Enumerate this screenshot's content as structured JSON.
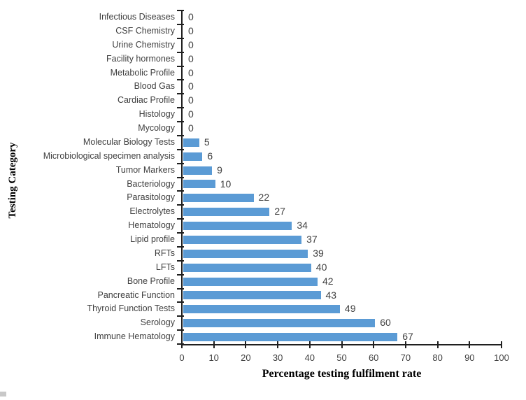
{
  "chart_data": {
    "type": "bar",
    "orientation": "horizontal",
    "xlabel": "Percentage testing fulfilment rate",
    "ylabel": "Testing Category",
    "xlim": [
      0,
      100
    ],
    "xticks": [
      0,
      10,
      20,
      30,
      40,
      50,
      60,
      70,
      80,
      90,
      100
    ],
    "grid": false,
    "legend": false,
    "categories": [
      "Infectious Diseases",
      "CSF Chemistry",
      "Urine Chemistry",
      "Facility hormones",
      "Metabolic Profile",
      "Blood Gas",
      "Cardiac Profile",
      "Histology",
      "Mycology",
      "Molecular Biology Tests",
      "Microbiological specimen analysis",
      "Tumor Markers",
      "Bacteriology",
      "Parasitology",
      "Electrolytes",
      "Hematology",
      "Lipid profile",
      "RFTs",
      "LFTs",
      "Bone Profile",
      "Pancreatic Function",
      "Thyroid Function Tests",
      "Serology",
      "Immune Hematology"
    ],
    "values": [
      0,
      0,
      0,
      0,
      0,
      0,
      0,
      0,
      0,
      5,
      6,
      9,
      10,
      22,
      27,
      34,
      37,
      39,
      40,
      42,
      43,
      49,
      60,
      67
    ],
    "data_labels_visible": true,
    "colors": {
      "bar": "#5B9BD5",
      "axis": "#1f1f1f",
      "category_label": "#3f3f3f",
      "value_label": "#404040",
      "corner_artifact": "#c8c8c8"
    }
  }
}
